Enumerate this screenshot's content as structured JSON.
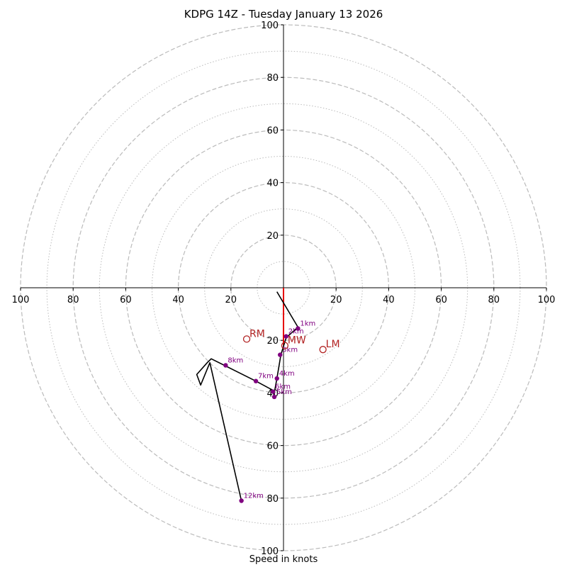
{
  "chart_data": {
    "type": "hodograph",
    "title": "KDPG 14Z - Tuesday January 13 2026",
    "xlabel": "Speed in knots",
    "xlim": [
      -100,
      100
    ],
    "ylim": [
      -100,
      100
    ],
    "ring_major": [
      20,
      40,
      60,
      80,
      100
    ],
    "ring_minor": [
      10,
      30,
      50,
      70,
      90
    ],
    "x_tick_labels": [
      "100",
      "80",
      "60",
      "40",
      "20",
      "20",
      "40",
      "60",
      "80",
      "100"
    ],
    "y_tick_labels_top": [
      "100",
      "80",
      "60",
      "40",
      "20"
    ],
    "y_tick_labels_bottom": [
      "20",
      "40",
      "60",
      "80",
      "100"
    ],
    "x_ticks": [
      -100,
      -80,
      -60,
      -40,
      -20,
      20,
      40,
      60,
      80,
      100
    ],
    "y_ticks": [
      100,
      80,
      60,
      40,
      20,
      -20,
      -40,
      -60,
      -80,
      -100
    ],
    "trace": [
      [
        -2.5,
        -1.5
      ],
      [
        5.5,
        -15
      ],
      [
        1,
        -19
      ],
      [
        -1,
        -25.5
      ],
      [
        -2.5,
        -34.5
      ],
      [
        -3.5,
        -40
      ],
      [
        -3.5,
        -41.5
      ],
      [
        -4,
        -39
      ],
      [
        -10.5,
        -35.5
      ],
      [
        -27.5,
        -27
      ],
      [
        -29,
        -28.5
      ],
      [
        -33,
        -33
      ],
      [
        -31.5,
        -37
      ],
      [
        -28,
        -28.5
      ],
      [
        -16,
        -81
      ]
    ],
    "height_markers": [
      {
        "label": "1km",
        "x": 5.5,
        "y": -15.5
      },
      {
        "label": "2km",
        "x": 1,
        "y": -18.5
      },
      {
        "label": "3km",
        "x": -1.3,
        "y": -25.5
      },
      {
        "label": "4km",
        "x": -2.5,
        "y": -34.5
      },
      {
        "label": "5km",
        "x": -3.5,
        "y": -41.5
      },
      {
        "label": "6km",
        "x": -4,
        "y": -39.5
      },
      {
        "label": "7km",
        "x": -10.5,
        "y": -35.5
      },
      {
        "label": "8km",
        "x": -22,
        "y": -29.5
      },
      {
        "label": "12km",
        "x": -16,
        "y": -81
      }
    ],
    "storm_motions": [
      {
        "label": "RM",
        "x": -14,
        "y": -19.5
      },
      {
        "label": "MW",
        "x": 0.5,
        "y": -22
      },
      {
        "label": "LM",
        "x": 15,
        "y": -23.5
      }
    ],
    "shear_vector": {
      "from": [
        0,
        0
      ],
      "to": [
        0,
        -22
      ]
    },
    "colors": {
      "trace": "#000000",
      "markers": "#800080",
      "storm_motion": "#b22222",
      "shear_vector": "#e60000",
      "rings": "#bbbbbb"
    }
  }
}
